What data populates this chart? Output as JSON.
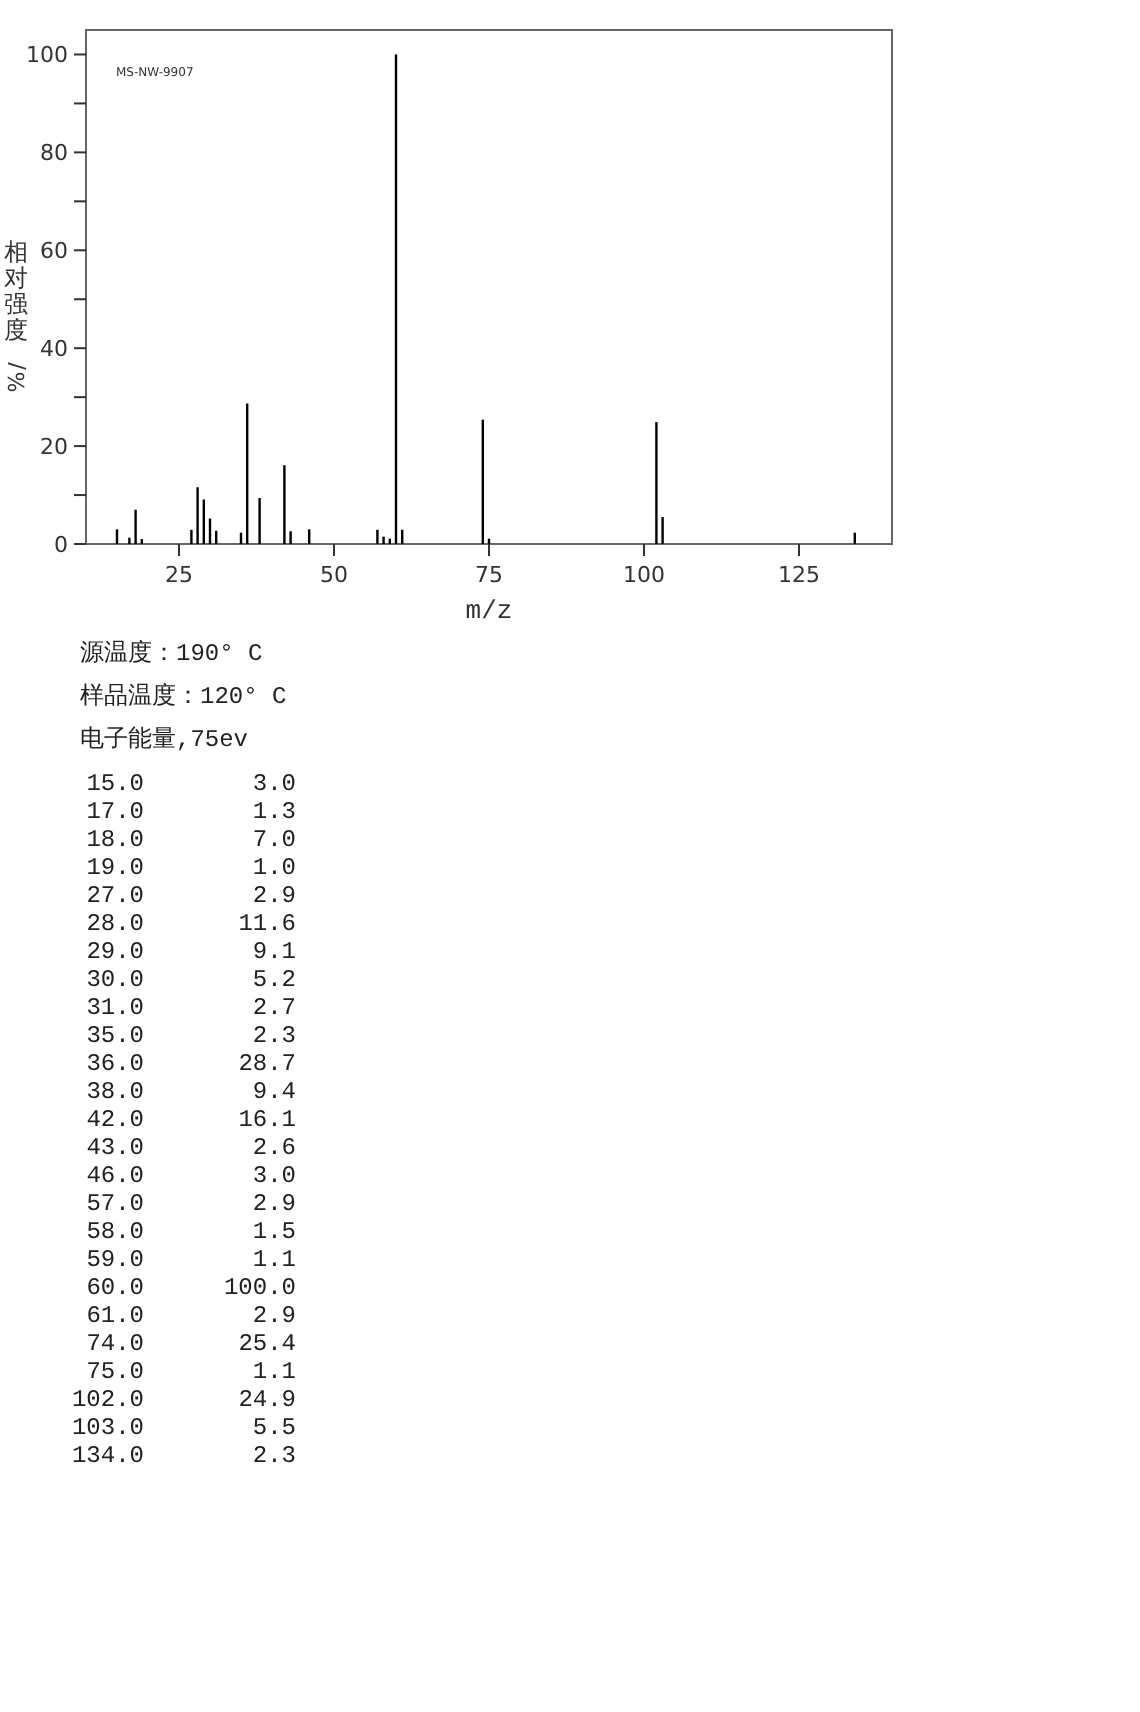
{
  "chart_data": [
    {
      "type": "bar",
      "xlabel": "m/z",
      "ylabel": "相对强度/%",
      "x": [
        15,
        17,
        18,
        19,
        27,
        28,
        29,
        30,
        31,
        35,
        36,
        38,
        42,
        43,
        46,
        57,
        58,
        59,
        60,
        61,
        74,
        75,
        102,
        103,
        134
      ],
      "values": [
        3.0,
        1.3,
        7.0,
        1.0,
        2.9,
        11.6,
        9.1,
        5.2,
        2.7,
        2.3,
        28.7,
        9.4,
        16.1,
        2.6,
        3.0,
        2.9,
        1.5,
        1.1,
        100.0,
        2.9,
        25.4,
        1.1,
        24.9,
        5.5,
        2.3
      ],
      "color": "#000000",
      "xlim": [
        10,
        140
      ],
      "ylim": [
        0,
        105
      ],
      "xticks": [
        25,
        50,
        75,
        100,
        125
      ],
      "yticks": [
        0,
        {
          "value": 10,
          "label": null
        },
        20,
        {
          "value": 30,
          "label": null
        },
        40,
        {
          "value": 50,
          "label": null
        },
        60,
        {
          "value": 70,
          "label": null
        },
        80,
        {
          "value": 90,
          "label": null
        },
        100
      ],
      "annotations": [
        "MS-NW-9907"
      ]
    },
    {
      "type": "other",
      "annotations": [
        "源温度：190° C",
        "样品温度：120° C",
        "电子能量,75ev",
        "15.0",
        "3.0",
        "17.0",
        "1.3",
        "18.0",
        "7.0",
        "19.0",
        "1.0",
        "27.0",
        "2.9",
        "28.0",
        "11.6",
        "29.0",
        "9.1",
        "30.0",
        "5.2",
        "31.0",
        "2.7",
        "35.0",
        "2.3",
        "36.0",
        "28.7",
        "38.0",
        "9.4",
        "42.0",
        "16.1",
        "43.0",
        "2.6",
        "46.0",
        "3.0",
        "57.0",
        "2.9",
        "58.0",
        "1.5",
        "59.0",
        "1.1",
        "60.0",
        "100.0",
        "61.0",
        "2.9",
        "74.0",
        "25.4",
        "75.0",
        "1.1",
        "102.0",
        "24.9",
        "103.0",
        "5.5",
        "134.0",
        "2.3"
      ]
    }
  ]
}
